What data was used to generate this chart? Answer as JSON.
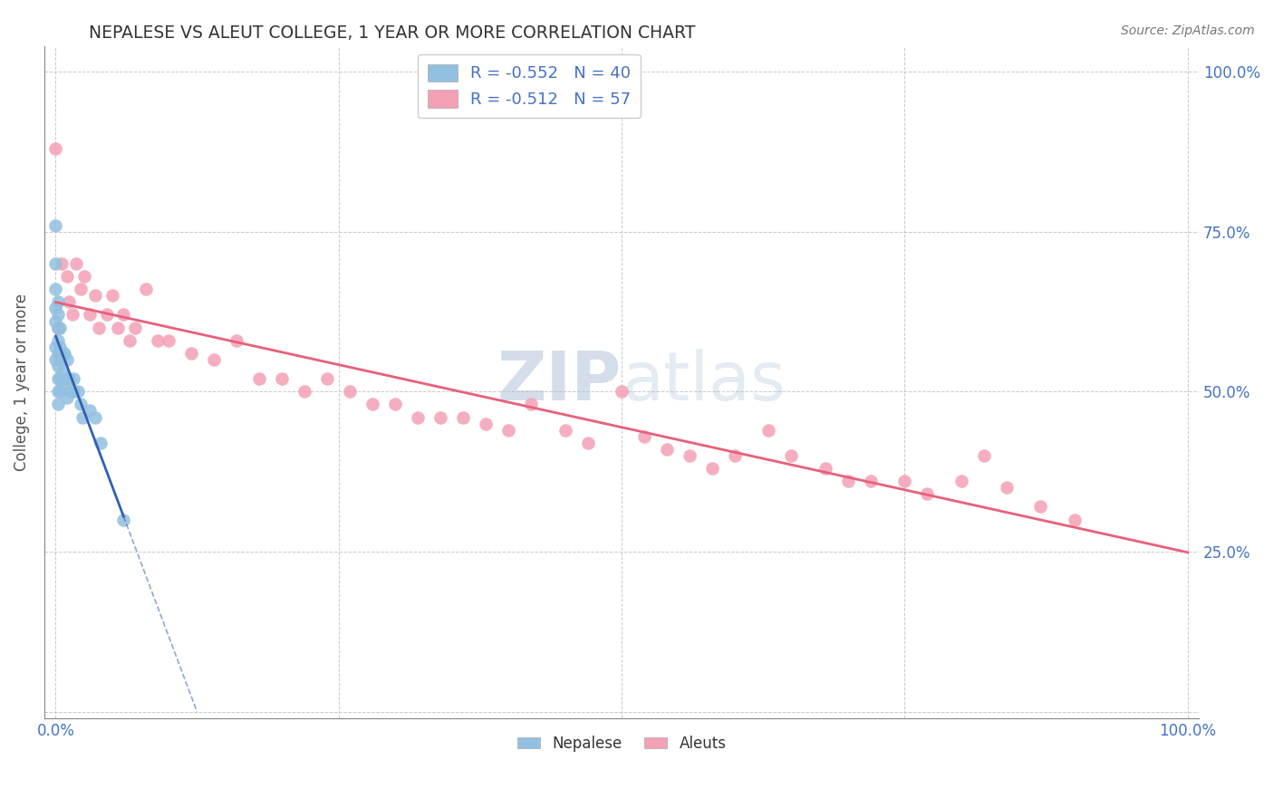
{
  "title": "NEPALESE VS ALEUT COLLEGE, 1 YEAR OR MORE CORRELATION CHART",
  "source": "Source: ZipAtlas.com",
  "ylabel": "College, 1 year or more",
  "xlim": [
    0.0,
    1.0
  ],
  "ylim": [
    0.0,
    1.0
  ],
  "legend_r1": "-0.552",
  "legend_n1": "40",
  "legend_r2": "-0.512",
  "legend_n2": "57",
  "nepalese_color": "#92c0e0",
  "aleuts_color": "#f4a0b5",
  "nepalese_line_color": "#3060b0",
  "aleuts_line_color": "#e8607a",
  "background_color": "#ffffff",
  "grid_color": "#bbbbbb",
  "tick_label_color": "#4472c4",
  "nepalese_x": [
    0.0,
    0.0,
    0.0,
    0.0,
    0.0,
    0.0,
    0.0,
    0.002,
    0.002,
    0.002,
    0.002,
    0.002,
    0.002,
    0.002,
    0.002,
    0.002,
    0.004,
    0.004,
    0.004,
    0.004,
    0.004,
    0.006,
    0.006,
    0.006,
    0.008,
    0.008,
    0.01,
    0.01,
    0.01,
    0.012,
    0.014,
    0.016,
    0.016,
    0.02,
    0.022,
    0.024,
    0.03,
    0.035,
    0.04,
    0.06
  ],
  "nepalese_y": [
    0.76,
    0.7,
    0.66,
    0.63,
    0.61,
    0.57,
    0.55,
    0.64,
    0.62,
    0.6,
    0.58,
    0.56,
    0.54,
    0.52,
    0.5,
    0.48,
    0.6,
    0.57,
    0.55,
    0.52,
    0.5,
    0.56,
    0.53,
    0.51,
    0.56,
    0.52,
    0.55,
    0.52,
    0.49,
    0.52,
    0.5,
    0.52,
    0.5,
    0.5,
    0.48,
    0.46,
    0.47,
    0.46,
    0.42,
    0.3
  ],
  "aleuts_x": [
    0.0,
    0.002,
    0.005,
    0.01,
    0.012,
    0.015,
    0.018,
    0.022,
    0.025,
    0.03,
    0.035,
    0.038,
    0.045,
    0.05,
    0.055,
    0.06,
    0.065,
    0.07,
    0.08,
    0.09,
    0.1,
    0.12,
    0.14,
    0.16,
    0.18,
    0.2,
    0.22,
    0.24,
    0.26,
    0.28,
    0.3,
    0.32,
    0.34,
    0.36,
    0.38,
    0.4,
    0.42,
    0.45,
    0.47,
    0.5,
    0.52,
    0.54,
    0.56,
    0.58,
    0.6,
    0.63,
    0.65,
    0.68,
    0.7,
    0.72,
    0.75,
    0.77,
    0.8,
    0.82,
    0.84,
    0.87,
    0.9
  ],
  "aleuts_y": [
    0.88,
    0.6,
    0.7,
    0.68,
    0.64,
    0.62,
    0.7,
    0.66,
    0.68,
    0.62,
    0.65,
    0.6,
    0.62,
    0.65,
    0.6,
    0.62,
    0.58,
    0.6,
    0.66,
    0.58,
    0.58,
    0.56,
    0.55,
    0.58,
    0.52,
    0.52,
    0.5,
    0.52,
    0.5,
    0.48,
    0.48,
    0.46,
    0.46,
    0.46,
    0.45,
    0.44,
    0.48,
    0.44,
    0.42,
    0.5,
    0.43,
    0.41,
    0.4,
    0.38,
    0.4,
    0.44,
    0.4,
    0.38,
    0.36,
    0.36,
    0.36,
    0.34,
    0.36,
    0.4,
    0.35,
    0.32,
    0.3
  ]
}
